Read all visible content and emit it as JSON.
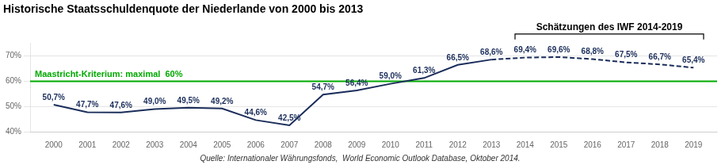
{
  "chart_data": {
    "type": "line",
    "title": "Historische Staatsschuldenquote der Niederlande von 2000 bis 2013",
    "annotation": "Schätzungen des IWF 2014-2019",
    "source": "Quelle: Internationaler Währungsfonds,  World Economic Outlook Database, Oktober 2014.",
    "reference_line": {
      "y": 60.0,
      "label": "Maastricht-Kriterium: maximal  60%",
      "color": "#00aa00"
    },
    "x": [
      2000,
      2001,
      2002,
      2003,
      2004,
      2005,
      2006,
      2007,
      2008,
      2009,
      2010,
      2011,
      2012,
      2013,
      2014,
      2015,
      2016,
      2017,
      2018,
      2019
    ],
    "series": [
      {
        "color": "#1a2d5a",
        "line_style": "solid",
        "values": [
          50.7,
          47.7,
          47.6,
          49.0,
          49.5,
          49.2,
          44.6,
          42.5,
          54.7,
          56.4,
          59.0,
          61.3,
          66.5,
          68.6,
          null,
          null,
          null,
          null,
          null,
          null
        ],
        "value_labels": [
          "50,7%",
          "47,7%",
          "47,6%",
          "49,0%",
          "49,5%",
          "49,2%",
          "44,6%",
          "42,5%",
          "54,7%",
          "56,4%",
          "59,0%",
          "61,3%",
          "66,5%",
          "68,6%",
          null,
          null,
          null,
          null,
          null,
          null
        ]
      },
      {
        "color": "#1a2d5a",
        "line_style": "dashed",
        "values": [
          null,
          null,
          null,
          null,
          null,
          null,
          null,
          null,
          null,
          null,
          null,
          null,
          null,
          68.6,
          69.4,
          69.6,
          68.8,
          67.5,
          66.7,
          65.4
        ],
        "value_labels": [
          null,
          null,
          null,
          null,
          null,
          null,
          null,
          null,
          null,
          null,
          null,
          null,
          null,
          null,
          "69,4%",
          "69,6%",
          "68,8%",
          "67,5%",
          "66,7%",
          "65,4%"
        ]
      }
    ],
    "xlim": [
      1999.3,
      2019.7
    ],
    "xticks": [
      2000,
      2001,
      2002,
      2003,
      2004,
      2005,
      2006,
      2007,
      2008,
      2009,
      2010,
      2011,
      2012,
      2013,
      2014,
      2015,
      2016,
      2017,
      2018,
      2019
    ],
    "ylim": [
      40,
      75
    ],
    "yticks": [
      {
        "value": 40,
        "label": "40%"
      },
      {
        "value": 50,
        "label": "50%"
      },
      {
        "value": 60,
        "label": "60%"
      },
      {
        "value": 70,
        "label": "70%"
      }
    ],
    "grid": "y",
    "data_labels": true
  }
}
